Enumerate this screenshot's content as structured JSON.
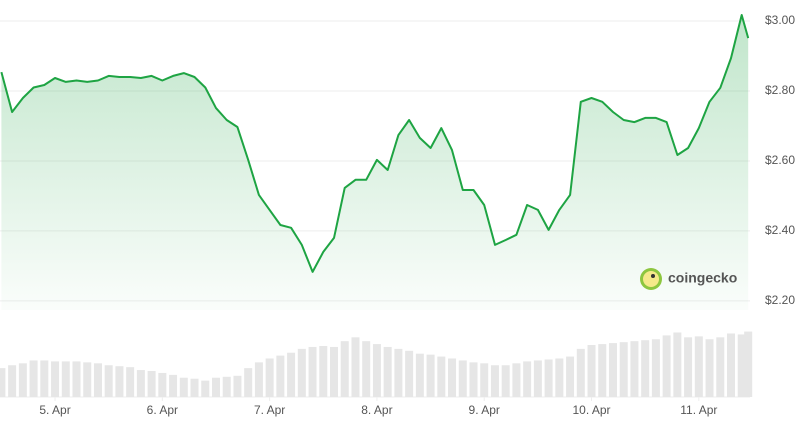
{
  "chart_data": {
    "type": "line",
    "watermark": "coingecko",
    "color": "#1ea443",
    "volume_color": "#e6e6e6",
    "grid": true,
    "x": [
      4.5,
      4.6,
      4.7,
      4.8,
      4.9,
      5.0,
      5.1,
      5.2,
      5.3,
      5.4,
      5.5,
      5.6,
      5.7,
      5.8,
      5.9,
      6.0,
      6.1,
      6.2,
      6.3,
      6.4,
      6.5,
      6.6,
      6.7,
      6.8,
      6.9,
      7.0,
      7.1,
      7.2,
      7.3,
      7.4,
      7.5,
      7.6,
      7.7,
      7.8,
      7.9,
      8.0,
      8.1,
      8.2,
      8.3,
      8.4,
      8.5,
      8.6,
      8.7,
      8.8,
      8.9,
      9.0,
      9.1,
      9.2,
      9.3,
      9.4,
      9.5,
      9.6,
      9.7,
      9.8,
      9.9,
      10.0,
      10.1,
      10.2,
      10.3,
      10.4,
      10.5,
      10.6,
      10.7,
      10.8,
      10.9,
      11.0,
      11.1,
      11.2,
      11.3,
      11.4,
      11.46
    ],
    "values": [
      2.854,
      2.74,
      2.78,
      2.81,
      2.817,
      2.837,
      2.826,
      2.83,
      2.826,
      2.83,
      2.843,
      2.84,
      2.84,
      2.837,
      2.843,
      2.83,
      2.843,
      2.851,
      2.84,
      2.81,
      2.751,
      2.717,
      2.697,
      2.603,
      2.503,
      2.46,
      2.417,
      2.409,
      2.36,
      2.283,
      2.34,
      2.38,
      2.523,
      2.546,
      2.546,
      2.603,
      2.574,
      2.674,
      2.717,
      2.666,
      2.637,
      2.694,
      2.631,
      2.517,
      2.517,
      2.474,
      2.36,
      2.374,
      2.389,
      2.474,
      2.46,
      2.403,
      2.46,
      2.503,
      2.769,
      2.78,
      2.769,
      2.74,
      2.717,
      2.711,
      2.723,
      2.723,
      2.711,
      2.617,
      2.637,
      2.694,
      2.769,
      2.809,
      2.894,
      3.017,
      2.951
    ],
    "volumes": [
      30,
      33,
      35,
      38,
      38,
      37,
      37,
      37,
      36,
      35,
      33,
      32,
      31,
      28,
      27,
      25,
      23,
      20,
      19,
      17,
      20,
      21,
      22,
      30,
      36,
      40,
      43,
      46,
      50,
      52,
      53,
      52,
      58,
      62,
      58,
      55,
      52,
      50,
      48,
      45,
      44,
      42,
      40,
      38,
      36,
      35,
      33,
      33,
      35,
      37,
      38,
      39,
      40,
      42,
      50,
      54,
      55,
      56,
      57,
      58,
      59,
      60,
      64,
      67,
      62,
      63,
      60,
      62,
      66,
      65,
      68
    ],
    "volume_lim": [
      0,
      80
    ],
    "xlim": [
      4.487,
      11.477
    ],
    "xticks": [
      {
        "value": 5,
        "label": "5. Apr"
      },
      {
        "value": 6,
        "label": "6. Apr"
      },
      {
        "value": 7,
        "label": "7. Apr"
      },
      {
        "value": 8,
        "label": "8. Apr"
      },
      {
        "value": 9,
        "label": "9. Apr"
      },
      {
        "value": 10,
        "label": "10. Apr"
      },
      {
        "value": 11,
        "label": "11. Apr"
      }
    ],
    "ylim": [
      2.174,
      3.06
    ],
    "yticks": [
      {
        "value": 2.2,
        "label": "$2.20"
      },
      {
        "value": 2.4,
        "label": "$2.40"
      },
      {
        "value": 2.6,
        "label": "$2.60"
      },
      {
        "value": 2.8,
        "label": "$2.80"
      },
      {
        "value": 3,
        "label": "$3.00"
      }
    ]
  }
}
